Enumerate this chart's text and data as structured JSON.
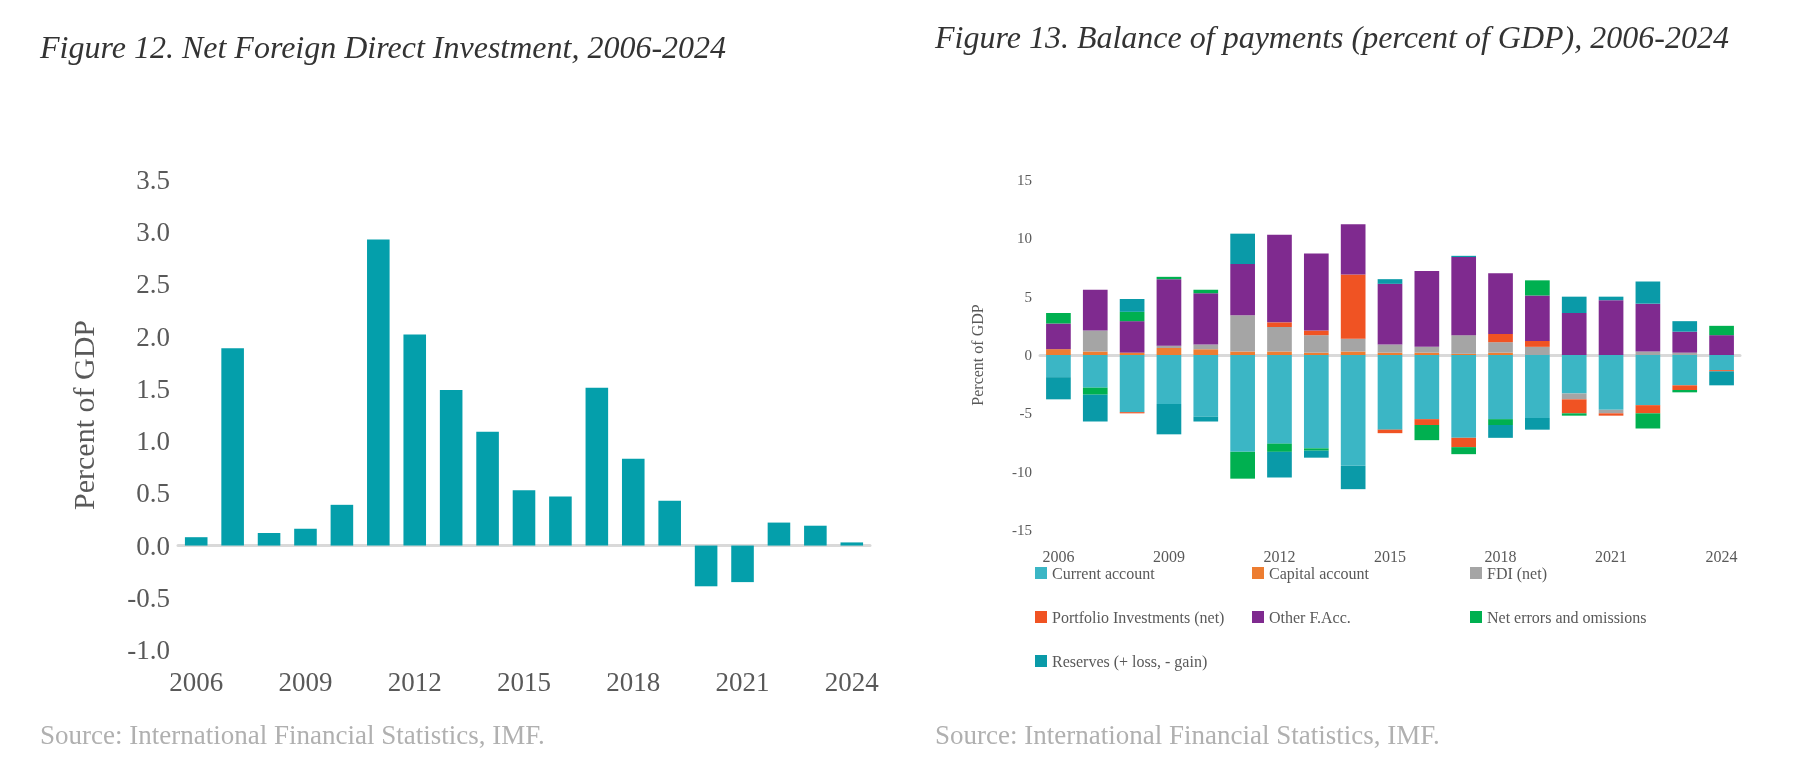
{
  "chart_data": [
    {
      "type": "bar",
      "title": "Figure 12. Net Foreign Direct Investment, 2006-2024",
      "ylabel": "Percent of GDP",
      "categories": [
        "2006",
        null,
        null,
        "2009",
        null,
        null,
        "2012",
        null,
        null,
        "2015",
        null,
        null,
        "2018",
        null,
        null,
        "2021",
        null,
        null,
        "2024"
      ],
      "values": [
        0.08,
        1.89,
        0.12,
        0.16,
        0.39,
        2.93,
        2.02,
        1.49,
        1.09,
        0.53,
        0.47,
        1.51,
        0.83,
        0.43,
        -0.39,
        -0.35,
        0.22,
        0.19,
        0.03
      ],
      "color": "#049fab",
      "ylim": [
        -1.0,
        3.5
      ],
      "yticks": [
        {
          "value": -1,
          "label": "-1.0"
        },
        {
          "value": -0.5,
          "label": "-0.5"
        },
        {
          "value": 0,
          "label": "0.0"
        },
        {
          "value": 0.5,
          "label": "0.5"
        },
        {
          "value": 1,
          "label": "1.0"
        },
        {
          "value": 1.5,
          "label": "1.5"
        },
        {
          "value": 2,
          "label": "2.0"
        },
        {
          "value": 2.5,
          "label": "2.5"
        },
        {
          "value": 3,
          "label": "3.0"
        },
        {
          "value": 3.5,
          "label": "3.5"
        }
      ],
      "annotations": [
        "Source: International Financial Statistics, IMF."
      ]
    },
    {
      "type": "bar",
      "title": "Figure 13. Balance of payments (percent of GDP), 2006-2024",
      "ylabel": "Percent of GDP",
      "stacked": true,
      "legend": "bottom",
      "categories": [
        "2006",
        null,
        null,
        "2009",
        null,
        null,
        "2012",
        null,
        null,
        "2015",
        null,
        null,
        "2018",
        null,
        null,
        "2021",
        null,
        null,
        "2024"
      ],
      "series": [
        {
          "name": "Current account",
          "color": "#3bb6c5",
          "values": [
            -1.9,
            -2.8,
            -4.9,
            -4.2,
            -5.3,
            -8.3,
            -7.6,
            -8.0,
            -9.5,
            -6.4,
            -5.5,
            -7.1,
            -5.5,
            -5.4,
            -3.3,
            -4.7,
            -4.3,
            -2.6,
            -1.3
          ]
        },
        {
          "name": "Capital account",
          "color": "#ed7d31",
          "values": [
            0.5,
            0.3,
            0.2,
            0.6,
            0.5,
            0.3,
            0.3,
            0.2,
            0.3,
            0.2,
            0.2,
            0.1,
            0.2,
            null,
            null,
            null,
            null,
            null,
            null
          ]
        },
        {
          "name": "FDI (net)",
          "color": "#a5a5a5",
          "values": [
            null,
            1.8,
            null,
            0.2,
            0.4,
            3.1,
            2.1,
            1.5,
            1.1,
            0.7,
            0.5,
            1.6,
            0.9,
            0.7,
            -0.5,
            -0.3,
            0.3,
            0.2,
            null
          ]
        },
        {
          "name": "Portfolio Investments (net)",
          "color": "#f05323",
          "values": [
            null,
            null,
            -0.1,
            null,
            null,
            null,
            0.4,
            0.4,
            5.5,
            -0.3,
            -0.5,
            -0.8,
            0.7,
            0.5,
            -1.2,
            -0.2,
            -0.7,
            -0.4,
            -0.1
          ]
        },
        {
          "name": "Other F.Acc.",
          "color": "#7f2a8f",
          "values": [
            2.2,
            3.5,
            2.7,
            5.7,
            4.4,
            4.4,
            7.5,
            6.6,
            4.3,
            5.2,
            6.5,
            6.7,
            5.2,
            3.9,
            3.6,
            4.7,
            4.1,
            1.8,
            1.7
          ]
        },
        {
          "name": "Net errors and omissions",
          "color": "#00b050",
          "values": [
            0.9,
            -0.6,
            0.8,
            0.2,
            0.3,
            -2.3,
            -0.7,
            -0.2,
            null,
            null,
            -1.3,
            -0.6,
            -0.5,
            1.3,
            -0.2,
            null,
            -1.3,
            -0.2,
            0.8
          ]
        },
        {
          "name": "Reserves (+ loss, - gain)",
          "color": "#0a9aa8",
          "values": [
            -1.9,
            -2.3,
            1.1,
            -2.6,
            -0.4,
            2.6,
            -2.2,
            -0.6,
            -2.0,
            0.4,
            null,
            0.1,
            -1.1,
            -1.0,
            1.4,
            0.3,
            1.9,
            0.9,
            -1.2
          ]
        }
      ],
      "ylim": [
        -15,
        15
      ],
      "yticks": [
        -15,
        -10,
        -5,
        0,
        5,
        10,
        15
      ],
      "annotations": [
        "Source: International Financial Statistics, IMF."
      ]
    }
  ]
}
